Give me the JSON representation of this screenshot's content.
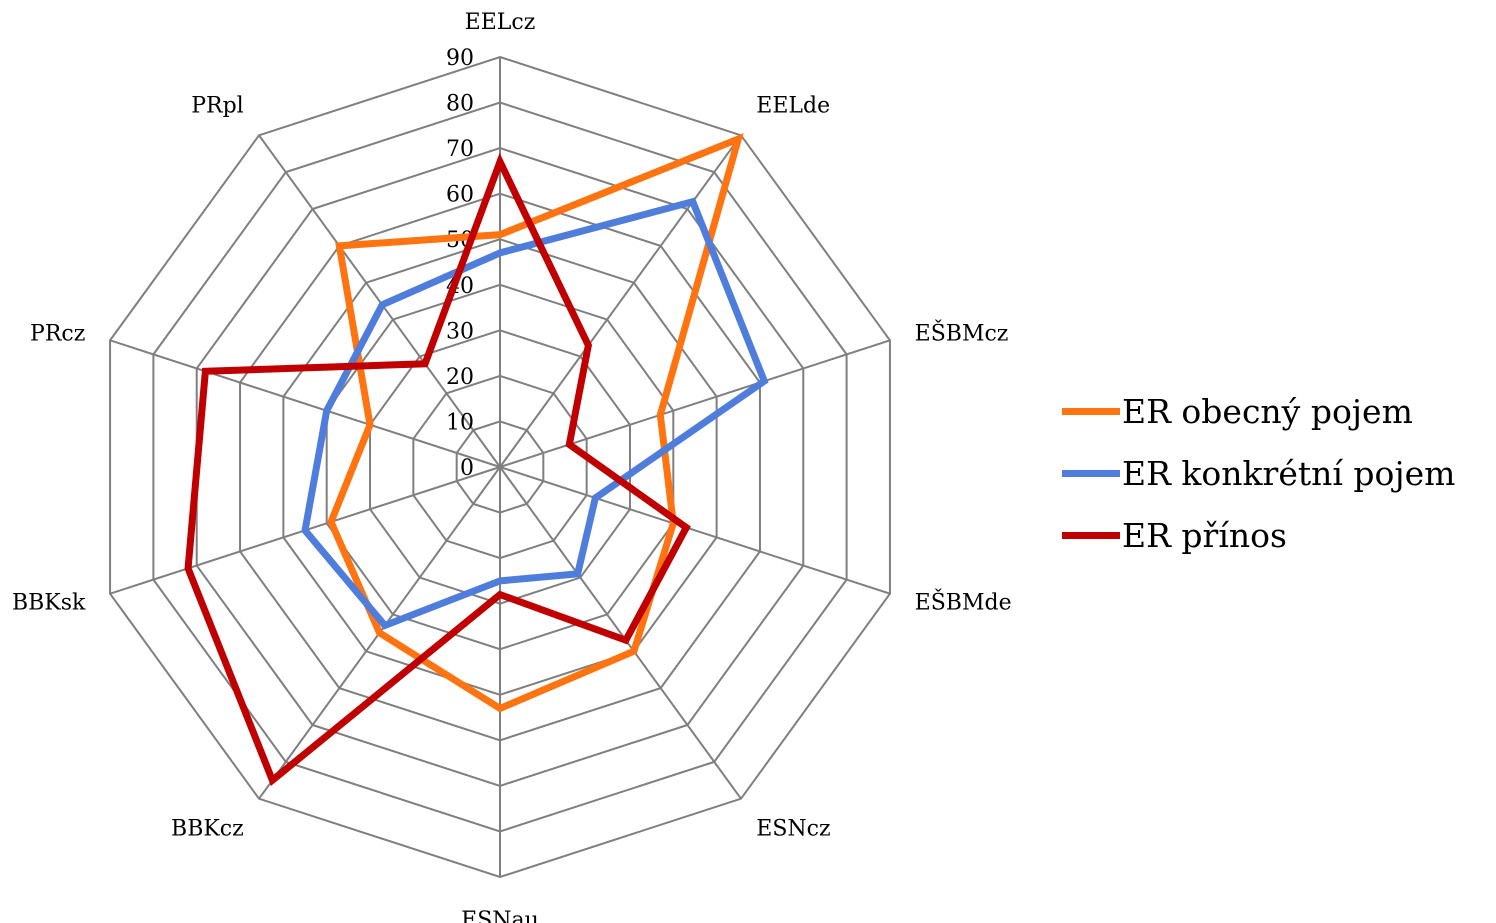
{
  "chart_data": {
    "type": "radar",
    "categories": [
      "EELcz",
      "EELde",
      "EŠBMcz",
      "EŠBMde",
      "ESNcz",
      "ESNau",
      "BBKcz",
      "BBKsk",
      "PRcz",
      "PRpl"
    ],
    "rlim": [
      0,
      90
    ],
    "rticks": [
      "0",
      "10",
      "20",
      "30",
      "40",
      "50",
      "60",
      "70",
      "80",
      "90"
    ],
    "grid": true,
    "legend_position": "right",
    "series": [
      {
        "name": "ER obecný pojem",
        "color": "#ff7410",
        "values": [
          51,
          89,
          37,
          40,
          50,
          53,
          45,
          39,
          30,
          60
        ]
      },
      {
        "name": "ER konkrétní pojem",
        "color": "#4f7ddb",
        "values": [
          47,
          72,
          61,
          22,
          29,
          25,
          43,
          45,
          40,
          44
        ]
      },
      {
        "name": "ER přínos",
        "color": "#c00000",
        "values": [
          67,
          33,
          16,
          43,
          47,
          28,
          85,
          72,
          68,
          28
        ]
      }
    ]
  }
}
